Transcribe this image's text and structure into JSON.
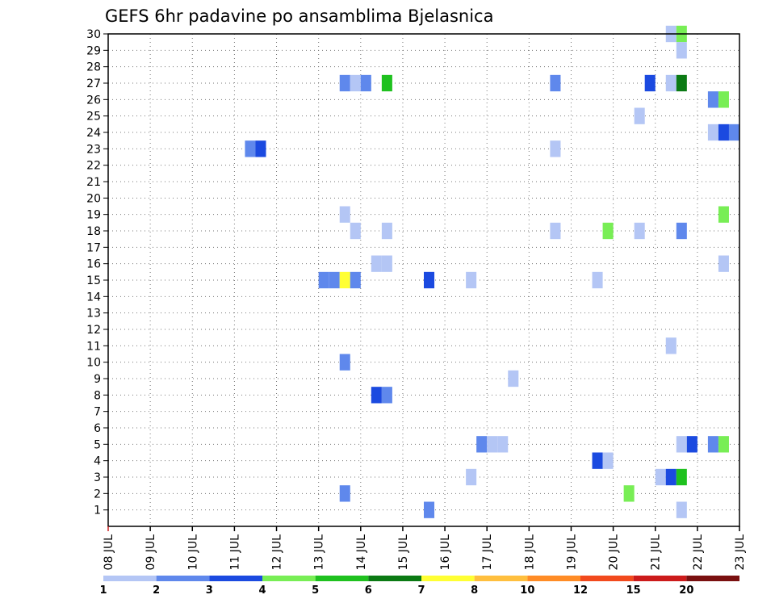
{
  "chart_data": {
    "type": "heatmap",
    "title": "GEFS 6hr padavine po ansamblima Bjelasnica",
    "xlabel": "",
    "ylabel": "",
    "x_tick_labels": [
      "08 JUL",
      "09 JUL",
      "10 JUL",
      "11 JUL",
      "12 JUL",
      "13 JUL",
      "14 JUL",
      "15 JUL",
      "16 JUL",
      "17 JUL",
      "18 JUL",
      "19 JUL",
      "20 JUL",
      "21 JUL",
      "22 JUL",
      "23 JUL"
    ],
    "x_range_days": [
      8,
      23
    ],
    "y_ticks": [
      1,
      2,
      3,
      4,
      5,
      6,
      7,
      8,
      9,
      10,
      11,
      12,
      13,
      14,
      15,
      16,
      17,
      18,
      19,
      20,
      21,
      22,
      23,
      24,
      25,
      26,
      27,
      28,
      29,
      30
    ],
    "y_range": [
      0,
      30
    ],
    "grid": true,
    "legend_position": "bottom",
    "legend": {
      "labels": [
        "1",
        "2",
        "3",
        "4",
        "5",
        "6",
        "7",
        "8",
        "10",
        "12",
        "15",
        "20"
      ],
      "colors": [
        "#b4c6f5",
        "#5f88ec",
        "#1b4ae0",
        "#78ee55",
        "#1fc11f",
        "#0b7a14",
        "#ffff33",
        "#ffbf3e",
        "#ff8c26",
        "#f24a1d",
        "#cc1b1b",
        "#7a1010"
      ]
    },
    "cells": [
      {
        "member": 30,
        "day": 21.25,
        "cls": 1
      },
      {
        "member": 30,
        "day": 21.5,
        "cls": 4
      },
      {
        "member": 29,
        "day": 21.5,
        "cls": 1
      },
      {
        "member": 27,
        "day": 13.5,
        "cls": 2
      },
      {
        "member": 27,
        "day": 13.75,
        "cls": 1
      },
      {
        "member": 27,
        "day": 14.0,
        "cls": 2
      },
      {
        "member": 27,
        "day": 14.5,
        "cls": 5
      },
      {
        "member": 27,
        "day": 18.5,
        "cls": 2
      },
      {
        "member": 27,
        "day": 20.75,
        "cls": 3
      },
      {
        "member": 27,
        "day": 21.25,
        "cls": 1
      },
      {
        "member": 27,
        "day": 21.5,
        "cls": 6
      },
      {
        "member": 26,
        "day": 22.25,
        "cls": 2
      },
      {
        "member": 26,
        "day": 22.5,
        "cls": 4
      },
      {
        "member": 25,
        "day": 20.5,
        "cls": 1
      },
      {
        "member": 24,
        "day": 22.25,
        "cls": 1
      },
      {
        "member": 24,
        "day": 22.5,
        "cls": 3
      },
      {
        "member": 24,
        "day": 22.75,
        "cls": 2
      },
      {
        "member": 23,
        "day": 11.25,
        "cls": 2
      },
      {
        "member": 23,
        "day": 11.5,
        "cls": 3
      },
      {
        "member": 23,
        "day": 18.5,
        "cls": 1
      },
      {
        "member": 19,
        "day": 13.5,
        "cls": 1
      },
      {
        "member": 19,
        "day": 22.5,
        "cls": 4
      },
      {
        "member": 18,
        "day": 13.75,
        "cls": 1
      },
      {
        "member": 18,
        "day": 14.5,
        "cls": 1
      },
      {
        "member": 18,
        "day": 18.5,
        "cls": 1
      },
      {
        "member": 18,
        "day": 19.75,
        "cls": 4
      },
      {
        "member": 18,
        "day": 20.5,
        "cls": 1
      },
      {
        "member": 18,
        "day": 21.5,
        "cls": 2
      },
      {
        "member": 16,
        "day": 14.25,
        "cls": 1
      },
      {
        "member": 16,
        "day": 14.5,
        "cls": 1
      },
      {
        "member": 16,
        "day": 22.5,
        "cls": 1
      },
      {
        "member": 15,
        "day": 13.0,
        "cls": 2
      },
      {
        "member": 15,
        "day": 13.25,
        "cls": 2
      },
      {
        "member": 15,
        "day": 13.5,
        "cls": 7
      },
      {
        "member": 15,
        "day": 13.75,
        "cls": 2
      },
      {
        "member": 15,
        "day": 15.5,
        "cls": 3
      },
      {
        "member": 15,
        "day": 16.5,
        "cls": 1
      },
      {
        "member": 15,
        "day": 19.5,
        "cls": 1
      },
      {
        "member": 11,
        "day": 21.25,
        "cls": 1
      },
      {
        "member": 10,
        "day": 13.5,
        "cls": 2
      },
      {
        "member": 9,
        "day": 17.5,
        "cls": 1
      },
      {
        "member": 8,
        "day": 14.25,
        "cls": 3
      },
      {
        "member": 8,
        "day": 14.5,
        "cls": 2
      },
      {
        "member": 5,
        "day": 16.75,
        "cls": 2
      },
      {
        "member": 5,
        "day": 17.0,
        "cls": 1
      },
      {
        "member": 5,
        "day": 17.25,
        "cls": 1
      },
      {
        "member": 5,
        "day": 21.5,
        "cls": 1
      },
      {
        "member": 5,
        "day": 21.75,
        "cls": 3
      },
      {
        "member": 5,
        "day": 22.25,
        "cls": 2
      },
      {
        "member": 5,
        "day": 22.5,
        "cls": 4
      },
      {
        "member": 4,
        "day": 19.5,
        "cls": 3
      },
      {
        "member": 4,
        "day": 19.75,
        "cls": 1
      },
      {
        "member": 3,
        "day": 16.5,
        "cls": 1
      },
      {
        "member": 3,
        "day": 21.0,
        "cls": 1
      },
      {
        "member": 3,
        "day": 21.25,
        "cls": 3
      },
      {
        "member": 3,
        "day": 21.5,
        "cls": 5
      },
      {
        "member": 2,
        "day": 13.5,
        "cls": 2
      },
      {
        "member": 2,
        "day": 20.25,
        "cls": 4
      },
      {
        "member": 1,
        "day": 15.5,
        "cls": 2
      },
      {
        "member": 1,
        "day": 21.5,
        "cls": 1
      }
    ]
  }
}
